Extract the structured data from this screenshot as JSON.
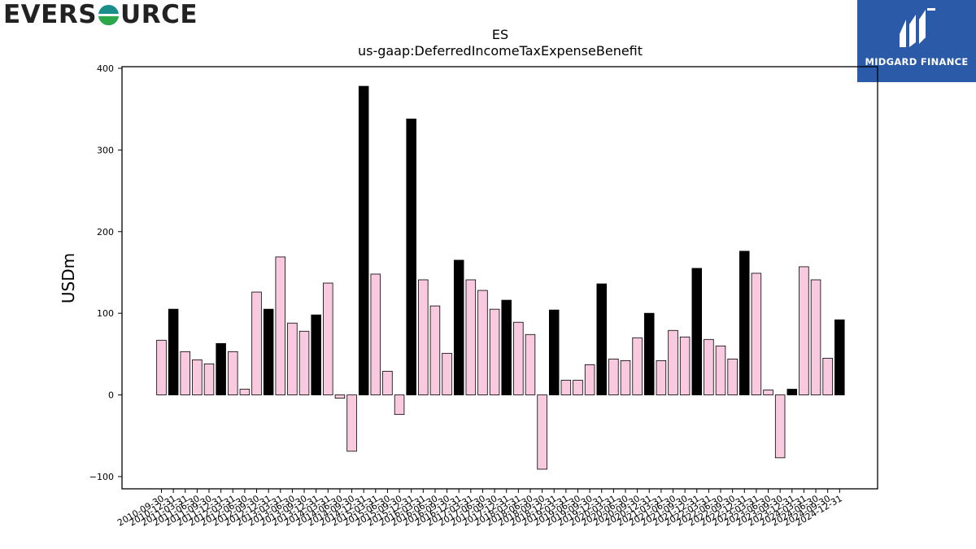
{
  "branding": {
    "company_logo_text": "EVERSOURCE",
    "badge_text": "MIDGARD FINANCE",
    "colors": {
      "logo_dark": "#222222",
      "logo_teal": "#1a8f8a",
      "logo_green": "#2aa84a",
      "badge_blue": "#2a5aa8"
    }
  },
  "chart_data": {
    "type": "bar",
    "title": "ES",
    "subtitle": "us-gaap:DeferredIncomeTaxExpenseBenefit",
    "ylabel": "USDm",
    "xlabel": "",
    "ylim": [
      -115,
      402
    ],
    "yticks": [
      -100,
      0,
      100,
      200,
      300,
      400
    ],
    "grid": false,
    "colors": {
      "quarter": "#f9c9e0",
      "year_end": "#000000",
      "edge": "#000000"
    },
    "categories": [
      "2010-09-30",
      "2010-12-31",
      "2011-03-31",
      "2011-06-30",
      "2011-09-30",
      "2011-12-31",
      "2012-03-31",
      "2012-06-30",
      "2012-09-30",
      "2012-12-31",
      "2013-03-31",
      "2013-06-30",
      "2013-09-30",
      "2013-12-31",
      "2014-03-31",
      "2014-06-30",
      "2014-09-30",
      "2014-12-31",
      "2015-03-31",
      "2015-06-30",
      "2015-09-30",
      "2015-12-31",
      "2016-03-31",
      "2016-06-30",
      "2016-09-30",
      "2016-12-31",
      "2017-03-31",
      "2017-06-30",
      "2017-09-30",
      "2017-12-31",
      "2018-03-31",
      "2018-06-30",
      "2018-09-30",
      "2018-12-31",
      "2019-03-31",
      "2019-06-30",
      "2019-09-30",
      "2019-12-31",
      "2020-03-31",
      "2020-06-30",
      "2020-09-30",
      "2020-12-31",
      "2021-03-31",
      "2021-06-30",
      "2021-09-30",
      "2021-12-31",
      "2022-03-31",
      "2022-06-30",
      "2022-09-30",
      "2022-12-31",
      "2023-03-31",
      "2023-06-30",
      "2023-09-30",
      "2023-12-31",
      "2024-03-31",
      "2024-06-30",
      "2024-09-30",
      "2024-12-31"
    ],
    "values": [
      67,
      105,
      53,
      43,
      38,
      63,
      53,
      7,
      126,
      105,
      169,
      88,
      78,
      98,
      137,
      -4,
      -69,
      378,
      148,
      29,
      -24,
      338,
      141,
      109,
      51,
      165,
      141,
      128,
      105,
      116,
      89,
      74,
      -91,
      104,
      18,
      18,
      37,
      136,
      44,
      42,
      70,
      100,
      42,
      79,
      71,
      155,
      68,
      60,
      44,
      176,
      149,
      6,
      -77,
      7,
      157,
      141,
      45,
      92
    ],
    "year_end": [
      false,
      true,
      false,
      false,
      false,
      true,
      false,
      false,
      false,
      true,
      false,
      false,
      false,
      true,
      false,
      false,
      false,
      true,
      false,
      false,
      false,
      true,
      false,
      false,
      false,
      true,
      false,
      false,
      false,
      true,
      false,
      false,
      false,
      true,
      false,
      false,
      false,
      true,
      false,
      false,
      false,
      true,
      false,
      false,
      false,
      true,
      false,
      false,
      false,
      true,
      false,
      false,
      false,
      true,
      false,
      false,
      false,
      true
    ]
  }
}
